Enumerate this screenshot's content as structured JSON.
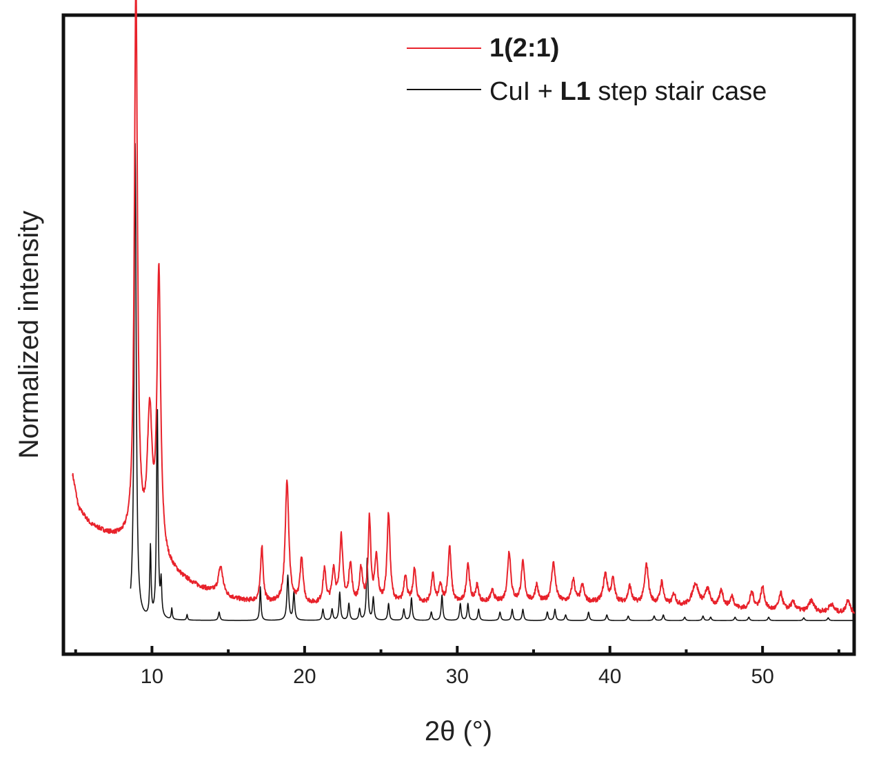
{
  "chart_data": {
    "type": "line",
    "xlabel": "2θ (°)",
    "ylabel": "Normalized intensity",
    "xlim": [
      4.2,
      56
    ],
    "ylim": [
      -0.06,
      1.08
    ],
    "x_ticks": [
      10,
      20,
      30,
      40,
      50
    ],
    "x_minor_ticks": [
      5,
      15,
      25,
      35,
      45,
      55
    ],
    "y_ticks_shown": false,
    "grid": false,
    "legend_position": "top-right",
    "legend": [
      {
        "series": "1(2:1)",
        "parts": [
          {
            "text": "1(2:1)",
            "bold": true
          }
        ]
      },
      {
        "series": "CuI + L1 step stair case",
        "parts": [
          {
            "text": "CuI + ",
            "bold": false
          },
          {
            "text": "L1",
            "bold": true
          },
          {
            "text": " step stair case",
            "bold": false
          }
        ]
      }
    ],
    "series": [
      {
        "name": "1(2:1)",
        "color": "#e8222b",
        "baseline": [
          [
            4.8,
            0.26
          ],
          [
            5.2,
            0.2
          ],
          [
            6.0,
            0.17
          ],
          [
            7.0,
            0.155
          ],
          [
            8.0,
            0.145
          ],
          [
            8.7,
            0.14
          ],
          [
            9.3,
            0.13
          ],
          [
            10.0,
            0.125
          ],
          [
            11.0,
            0.095
          ],
          [
            12.0,
            0.075
          ],
          [
            13.0,
            0.06
          ],
          [
            14.0,
            0.05
          ],
          [
            15.0,
            0.04
          ],
          [
            16.0,
            0.035
          ],
          [
            18.0,
            0.03
          ],
          [
            20.0,
            0.028
          ],
          [
            25.0,
            0.028
          ],
          [
            30.0,
            0.03
          ],
          [
            35.0,
            0.032
          ],
          [
            40.0,
            0.032
          ],
          [
            45.0,
            0.025
          ],
          [
            50.0,
            0.018
          ],
          [
            56.0,
            0.012
          ]
        ],
        "peaks": [
          [
            8.95,
            1.0,
            0.12
          ],
          [
            9.85,
            0.23,
            0.18
          ],
          [
            10.45,
            0.5,
            0.14
          ],
          [
            14.5,
            0.05,
            0.18
          ],
          [
            17.2,
            0.1,
            0.1
          ],
          [
            18.85,
            0.22,
            0.14
          ],
          [
            19.8,
            0.08,
            0.12
          ],
          [
            21.3,
            0.06,
            0.12
          ],
          [
            21.9,
            0.06,
            0.12
          ],
          [
            22.4,
            0.12,
            0.12
          ],
          [
            23.0,
            0.07,
            0.12
          ],
          [
            23.7,
            0.06,
            0.12
          ],
          [
            24.25,
            0.15,
            0.1
          ],
          [
            24.7,
            0.08,
            0.12
          ],
          [
            25.5,
            0.16,
            0.12
          ],
          [
            26.6,
            0.05,
            0.12
          ],
          [
            27.2,
            0.06,
            0.12
          ],
          [
            28.4,
            0.05,
            0.12
          ],
          [
            28.9,
            0.03,
            0.12
          ],
          [
            29.5,
            0.1,
            0.12
          ],
          [
            30.7,
            0.07,
            0.12
          ],
          [
            31.3,
            0.03,
            0.12
          ],
          [
            32.3,
            0.02,
            0.15
          ],
          [
            33.4,
            0.09,
            0.13
          ],
          [
            34.3,
            0.07,
            0.13
          ],
          [
            35.2,
            0.03,
            0.12
          ],
          [
            36.3,
            0.07,
            0.15
          ],
          [
            37.6,
            0.04,
            0.13
          ],
          [
            38.2,
            0.03,
            0.13
          ],
          [
            39.7,
            0.05,
            0.15
          ],
          [
            40.2,
            0.04,
            0.13
          ],
          [
            41.3,
            0.03,
            0.13
          ],
          [
            42.4,
            0.07,
            0.15
          ],
          [
            43.4,
            0.04,
            0.13
          ],
          [
            44.2,
            0.02,
            0.13
          ],
          [
            45.6,
            0.04,
            0.25
          ],
          [
            46.4,
            0.03,
            0.2
          ],
          [
            47.3,
            0.03,
            0.15
          ],
          [
            48.0,
            0.02,
            0.15
          ],
          [
            49.3,
            0.03,
            0.15
          ],
          [
            50.0,
            0.04,
            0.15
          ],
          [
            51.2,
            0.03,
            0.15
          ],
          [
            52.0,
            0.015,
            0.2
          ],
          [
            53.2,
            0.02,
            0.2
          ],
          [
            54.5,
            0.015,
            0.2
          ],
          [
            55.6,
            0.025,
            0.15
          ]
        ]
      },
      {
        "name": "CuI + L1 step stair case",
        "color": "#111111",
        "baseline": [
          [
            8.6,
            0.0
          ],
          [
            56.0,
            0.0
          ]
        ],
        "peaks": [
          [
            8.9,
            0.85,
            0.08
          ],
          [
            9.9,
            0.125,
            0.05
          ],
          [
            10.35,
            0.38,
            0.06
          ],
          [
            10.6,
            0.06,
            0.05
          ],
          [
            11.3,
            0.02,
            0.04
          ],
          [
            12.3,
            0.01,
            0.04
          ],
          [
            14.4,
            0.015,
            0.06
          ],
          [
            17.1,
            0.06,
            0.05
          ],
          [
            18.9,
            0.08,
            0.07
          ],
          [
            19.3,
            0.05,
            0.06
          ],
          [
            21.2,
            0.02,
            0.06
          ],
          [
            21.8,
            0.02,
            0.06
          ],
          [
            22.3,
            0.05,
            0.06
          ],
          [
            22.9,
            0.03,
            0.06
          ],
          [
            23.6,
            0.02,
            0.06
          ],
          [
            24.1,
            0.11,
            0.06
          ],
          [
            24.5,
            0.04,
            0.06
          ],
          [
            25.5,
            0.03,
            0.06
          ],
          [
            26.5,
            0.02,
            0.06
          ],
          [
            27.0,
            0.04,
            0.06
          ],
          [
            28.3,
            0.015,
            0.06
          ],
          [
            29.0,
            0.045,
            0.06
          ],
          [
            30.2,
            0.03,
            0.06
          ],
          [
            30.7,
            0.03,
            0.06
          ],
          [
            31.4,
            0.02,
            0.06
          ],
          [
            32.8,
            0.015,
            0.06
          ],
          [
            33.6,
            0.02,
            0.06
          ],
          [
            34.3,
            0.02,
            0.06
          ],
          [
            35.9,
            0.015,
            0.06
          ],
          [
            36.4,
            0.02,
            0.06
          ],
          [
            37.1,
            0.01,
            0.06
          ],
          [
            38.6,
            0.015,
            0.06
          ],
          [
            39.8,
            0.01,
            0.06
          ],
          [
            41.2,
            0.008,
            0.06
          ],
          [
            42.9,
            0.008,
            0.06
          ],
          [
            43.5,
            0.01,
            0.06
          ],
          [
            44.9,
            0.006,
            0.06
          ],
          [
            46.1,
            0.008,
            0.06
          ],
          [
            46.6,
            0.006,
            0.06
          ],
          [
            48.2,
            0.006,
            0.06
          ],
          [
            49.1,
            0.006,
            0.06
          ],
          [
            50.4,
            0.006,
            0.06
          ],
          [
            52.7,
            0.005,
            0.06
          ],
          [
            54.3,
            0.005,
            0.06
          ]
        ]
      }
    ]
  }
}
